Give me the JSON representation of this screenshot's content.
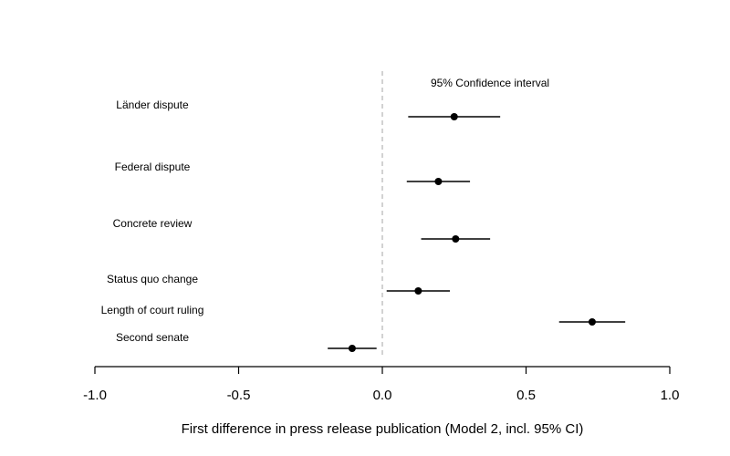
{
  "chart_data": {
    "type": "scatter",
    "title": "",
    "xlabel": "First difference in press release publication (Model 2, incl. 95% CI)",
    "ylabel": "",
    "xlim": [
      -1.0,
      1.0
    ],
    "x_ticks": [
      -1.0,
      -0.5,
      0.0,
      0.5,
      1.0
    ],
    "x_tick_labels": [
      "-1.0",
      "-0.5",
      "0.0",
      "0.5",
      "1.0"
    ],
    "reference_line": 0.0,
    "grid": false,
    "annotation": "95% Confidence interval",
    "colors": {
      "marker": "#000000",
      "reference": "#b3b3b3"
    },
    "points": [
      {
        "label": "Länder dispute",
        "estimate": 0.25,
        "lower": 0.09,
        "upper": 0.41
      },
      {
        "label": "Federal dispute",
        "estimate": 0.195,
        "lower": 0.085,
        "upper": 0.305
      },
      {
        "label": "Concrete review",
        "estimate": 0.255,
        "lower": 0.135,
        "upper": 0.375
      },
      {
        "label": "Status quo change",
        "estimate": 0.125,
        "lower": 0.015,
        "upper": 0.235
      },
      {
        "label": "Length of court ruling",
        "estimate": 0.73,
        "lower": 0.615,
        "upper": 0.845
      },
      {
        "label": "Second senate",
        "estimate": -0.105,
        "lower": -0.19,
        "upper": -0.02
      }
    ]
  }
}
